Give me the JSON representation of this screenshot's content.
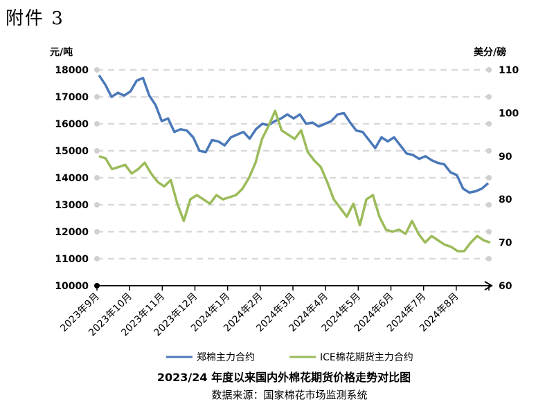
{
  "header": {
    "attachment_label": "附件 3"
  },
  "chart_data": {
    "type": "line",
    "title": "2023/24 年度以来国内外棉花期货价格走势对比图",
    "source": "数据来源：国家棉花市场监测系统",
    "left_axis": {
      "unit": "元/吨",
      "ylim": [
        10000,
        18000
      ],
      "ticks": [
        "10000",
        "11000",
        "12000",
        "13000",
        "14000",
        "15000",
        "16000",
        "17000",
        "18000"
      ]
    },
    "right_axis": {
      "unit": "美分/磅",
      "ylim": [
        60,
        110
      ],
      "ticks": [
        "60",
        "70",
        "80",
        "90",
        "100",
        "110"
      ]
    },
    "x_labels": [
      "2023年9月",
      "2023年10月",
      "2023年11月",
      "2023年12月",
      "2024年1月",
      "2024年2月",
      "2024年3月",
      "2024年4月",
      "2024年5月",
      "2024年6月",
      "2024年7月",
      "2024年8月"
    ],
    "grid": true,
    "legend_position": "bottom",
    "series": [
      {
        "name": "郑棉主力合约",
        "axis": "left",
        "color": "#4a78b8",
        "values": [
          17800,
          17450,
          17000,
          17150,
          17050,
          17200,
          17600,
          17700,
          17050,
          16700,
          16100,
          16200,
          15700,
          15800,
          15750,
          15500,
          15000,
          14950,
          15400,
          15350,
          15200,
          15500,
          15600,
          15700,
          15450,
          15800,
          16000,
          15950,
          16100,
          16200,
          16350,
          16200,
          16350,
          16000,
          16050,
          15900,
          16000,
          16100,
          16350,
          16400,
          16050,
          15750,
          15700,
          15400,
          15100,
          15500,
          15350,
          15500,
          15200,
          14900,
          14850,
          14700,
          14800,
          14650,
          14550,
          14500,
          14200,
          14100,
          13600,
          13450,
          13500,
          13600,
          13800
        ]
      },
      {
        "name": "ICE棉花期货主力合约",
        "axis": "right",
        "color": "#9bbb59",
        "values": [
          90,
          89.5,
          87,
          87.5,
          88,
          86,
          87,
          88.5,
          86,
          84,
          83,
          84.5,
          79,
          75,
          80,
          81,
          80,
          79,
          81,
          80,
          80.5,
          81,
          82.5,
          85,
          88.5,
          94,
          97,
          100.5,
          96,
          95,
          94,
          96,
          91,
          89,
          87.5,
          84,
          80,
          78,
          76,
          79,
          74,
          80,
          81,
          76,
          73,
          72.5,
          73,
          72,
          75,
          72,
          70,
          71.5,
          70.5,
          69.5,
          69,
          68,
          68,
          70,
          71.5,
          70.5,
          70
        ]
      }
    ]
  }
}
